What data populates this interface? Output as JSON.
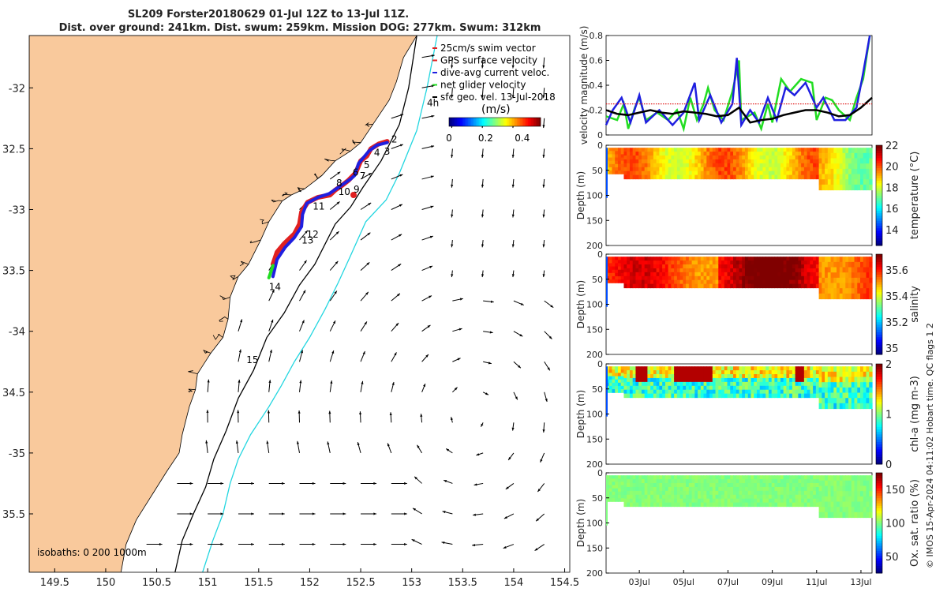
{
  "title_line1": "SL209 Forster20180629 01-Jul 12Z to 13-Jul 11Z.",
  "title_line2": "Dist. over ground: 241km. Dist. swum: 259km. Mission DOG: 277km. Swum: 312km",
  "credit": "© IMOS 15-Apr-2024 04:11:02 Hobart time. QC flags 1  2",
  "colors": {
    "land": "#f9c99c",
    "gps": "#e02020",
    "dive_avg": "#1f1fe0",
    "net": "#22dd22",
    "isobath_200": "#000000",
    "isobath_1000": "#22d6e0",
    "speed_black": "#000000"
  },
  "chart_data": [
    {
      "type": "map",
      "legend": {
        "entries": [
          "25cm/s swim vector",
          "GPS surface velocity",
          "dive-avg current veloc.",
          "net glider velocity",
          "sfc geo. vel. 13-Jul-2018"
        ],
        "placement": "top-right"
      },
      "colorbar": {
        "label": "(m/s)",
        "ticks": [
          0,
          0.2,
          0.4
        ],
        "range": [
          0,
          0.5
        ]
      },
      "xticks": [
        149.5,
        150,
        150.5,
        151,
        151.5,
        152,
        152.5,
        153,
        153.5,
        154,
        154.5
      ],
      "xtick_labels": [
        "149.5",
        "150",
        "150.5",
        "151",
        "151.5",
        "152",
        "152.5",
        "153",
        "153.5",
        "154",
        "154.5"
      ],
      "xlim": [
        149.25,
        154.55
      ],
      "yticks": [
        -32,
        -32.5,
        -33,
        -33.5,
        -34,
        -34.5,
        -35,
        -35.5
      ],
      "ytick_labels": [
        "-32",
        "32.5",
        "-33",
        "33.5",
        "-34",
        "34.5",
        "-35",
        "35.5"
      ],
      "ylim": [
        -35.98,
        -31.57
      ],
      "isobaths_label": "isobaths: 0   200  1000m",
      "coast": [
        [
          153.05,
          -31.57
        ],
        [
          152.92,
          -31.75
        ],
        [
          152.85,
          -31.95
        ],
        [
          152.78,
          -32.1
        ],
        [
          152.62,
          -32.3
        ],
        [
          152.5,
          -32.45
        ],
        [
          152.4,
          -32.52
        ],
        [
          152.25,
          -32.6
        ],
        [
          152.12,
          -32.72
        ],
        [
          151.95,
          -32.83
        ],
        [
          151.82,
          -32.88
        ],
        [
          151.73,
          -32.93
        ],
        [
          151.6,
          -33.1
        ],
        [
          151.52,
          -33.25
        ],
        [
          151.4,
          -33.45
        ],
        [
          151.3,
          -33.55
        ],
        [
          151.22,
          -33.72
        ],
        [
          151.2,
          -33.9
        ],
        [
          151.15,
          -34.05
        ],
        [
          151.03,
          -34.18
        ],
        [
          150.9,
          -34.35
        ],
        [
          150.88,
          -34.48
        ],
        [
          150.82,
          -34.62
        ],
        [
          150.75,
          -34.85
        ],
        [
          150.72,
          -35.0
        ],
        [
          150.6,
          -35.15
        ],
        [
          150.45,
          -35.35
        ],
        [
          150.3,
          -35.55
        ],
        [
          150.2,
          -35.75
        ],
        [
          150.15,
          -35.98
        ]
      ],
      "isobath_200": [
        [
          153.05,
          -31.57
        ],
        [
          152.97,
          -32.0
        ],
        [
          152.88,
          -32.3
        ],
        [
          152.7,
          -32.6
        ],
        [
          152.52,
          -32.82
        ],
        [
          152.4,
          -32.98
        ],
        [
          152.25,
          -33.12
        ],
        [
          152.05,
          -33.45
        ],
        [
          151.9,
          -33.62
        ],
        [
          151.75,
          -33.85
        ],
        [
          151.58,
          -34.05
        ],
        [
          151.45,
          -34.32
        ],
        [
          151.3,
          -34.55
        ],
        [
          151.18,
          -34.82
        ],
        [
          151.06,
          -35.05
        ],
        [
          150.98,
          -35.28
        ],
        [
          150.86,
          -35.5
        ],
        [
          150.75,
          -35.72
        ],
        [
          150.68,
          -35.98
        ]
      ],
      "isobath_1000": [
        [
          153.25,
          -31.57
        ],
        [
          153.15,
          -32.0
        ],
        [
          153.05,
          -32.35
        ],
        [
          152.88,
          -32.7
        ],
        [
          152.75,
          -32.92
        ],
        [
          152.55,
          -33.1
        ],
        [
          152.4,
          -33.38
        ],
        [
          152.28,
          -33.6
        ],
        [
          152.15,
          -33.82
        ],
        [
          152.0,
          -34.05
        ],
        [
          151.85,
          -34.25
        ],
        [
          151.72,
          -34.45
        ],
        [
          151.6,
          -34.62
        ],
        [
          151.42,
          -34.85
        ],
        [
          151.3,
          -35.05
        ],
        [
          151.22,
          -35.25
        ],
        [
          151.15,
          -35.5
        ],
        [
          151.05,
          -35.72
        ],
        [
          150.95,
          -35.98
        ]
      ],
      "track_gps": [
        [
          152.76,
          -32.44
        ],
        [
          152.68,
          -32.46
        ],
        [
          152.6,
          -32.5
        ],
        [
          152.56,
          -32.56
        ],
        [
          152.5,
          -32.6
        ],
        [
          152.45,
          -32.7
        ],
        [
          152.38,
          -32.76
        ],
        [
          152.32,
          -32.8
        ],
        [
          152.25,
          -32.84
        ],
        [
          152.2,
          -32.88
        ],
        [
          152.08,
          -32.9
        ],
        [
          151.98,
          -32.94
        ],
        [
          151.92,
          -33.02
        ],
        [
          151.9,
          -33.12
        ],
        [
          151.85,
          -33.2
        ],
        [
          151.75,
          -33.28
        ],
        [
          151.68,
          -33.35
        ],
        [
          151.64,
          -33.45
        ]
      ],
      "track_dive": [
        [
          152.76,
          -32.45
        ],
        [
          152.66,
          -32.47
        ],
        [
          152.58,
          -32.52
        ],
        [
          152.52,
          -32.58
        ],
        [
          152.48,
          -32.62
        ],
        [
          152.44,
          -32.72
        ],
        [
          152.4,
          -32.75
        ],
        [
          152.33,
          -32.79
        ],
        [
          152.26,
          -32.83
        ],
        [
          152.19,
          -32.87
        ],
        [
          152.08,
          -32.9
        ],
        [
          151.97,
          -32.95
        ],
        [
          151.93,
          -33.04
        ],
        [
          151.92,
          -33.14
        ],
        [
          151.85,
          -33.23
        ],
        [
          151.76,
          -33.31
        ],
        [
          151.68,
          -33.41
        ],
        [
          151.64,
          -33.55
        ]
      ],
      "track_net": [
        [
          151.64,
          -33.46
        ],
        [
          151.6,
          -33.56
        ]
      ],
      "waypoint_labels": [
        {
          "text": "2",
          "lon": 152.8,
          "lat": -32.45
        },
        {
          "text": "3",
          "lon": 152.73,
          "lat": -32.55
        },
        {
          "text": "4",
          "lon": 152.63,
          "lat": -32.56
        },
        {
          "text": "5",
          "lon": 152.53,
          "lat": -32.66
        },
        {
          "text": "7",
          "lon": 152.49,
          "lat": -32.75
        },
        {
          "text": "6",
          "lon": 152.42,
          "lat": -32.72
        },
        {
          "text": "8",
          "lon": 152.26,
          "lat": -32.81
        },
        {
          "text": "9",
          "lon": 152.43,
          "lat": -32.86
        },
        {
          "text": "10",
          "lon": 152.28,
          "lat": -32.88
        },
        {
          "text": "11",
          "lon": 152.03,
          "lat": -33.0
        },
        {
          "text": "12",
          "lon": 151.97,
          "lat": -33.23
        },
        {
          "text": "13",
          "lon": 151.92,
          "lat": -33.28
        },
        {
          "text": "14",
          "lon": 151.6,
          "lat": -33.66
        },
        {
          "text": "15",
          "lon": 151.38,
          "lat": -34.26
        },
        {
          "text": "4h",
          "lon": 153.15,
          "lat": -32.15
        }
      ]
    },
    {
      "type": "line",
      "ylabel": "velocity magnitude (m/s)",
      "yticks": [
        0,
        0.2,
        0.4,
        0.6,
        0.8
      ],
      "ylim": [
        0,
        0.8
      ],
      "xlim": [
        1.5,
        13.5
      ],
      "series": [
        {
          "color": "green",
          "values": [
            [
              1.5,
              0.15
            ],
            [
              2.0,
              0.12
            ],
            [
              2.3,
              0.25
            ],
            [
              2.5,
              0.05
            ],
            [
              2.8,
              0.22
            ],
            [
              3.0,
              0.3
            ],
            [
              3.3,
              0.12
            ],
            [
              3.8,
              0.18
            ],
            [
              4.3,
              0.12
            ],
            [
              4.7,
              0.2
            ],
            [
              5.0,
              0.05
            ],
            [
              5.3,
              0.3
            ],
            [
              5.6,
              0.12
            ],
            [
              5.9,
              0.25
            ],
            [
              6.1,
              0.38
            ],
            [
              6.4,
              0.2
            ],
            [
              6.8,
              0.12
            ],
            [
              7.2,
              0.35
            ],
            [
              7.5,
              0.6
            ],
            [
              7.6,
              0.12
            ],
            [
              8.2,
              0.18
            ],
            [
              8.5,
              0.05
            ],
            [
              8.8,
              0.25
            ],
            [
              9.0,
              0.1
            ],
            [
              9.4,
              0.45
            ],
            [
              9.8,
              0.35
            ],
            [
              10.3,
              0.45
            ],
            [
              10.8,
              0.42
            ],
            [
              11.0,
              0.12
            ],
            [
              11.4,
              0.3
            ],
            [
              11.7,
              0.28
            ],
            [
              12.0,
              0.2
            ],
            [
              12.5,
              0.12
            ],
            [
              12.8,
              0.3
            ],
            [
              13.1,
              0.45
            ],
            [
              13.4,
              0.8
            ]
          ]
        },
        {
          "color": "blue",
          "values": [
            [
              1.5,
              0.08
            ],
            [
              1.8,
              0.2
            ],
            [
              2.2,
              0.3
            ],
            [
              2.6,
              0.1
            ],
            [
              3.0,
              0.32
            ],
            [
              3.3,
              0.1
            ],
            [
              3.9,
              0.2
            ],
            [
              4.5,
              0.08
            ],
            [
              5.0,
              0.18
            ],
            [
              5.5,
              0.42
            ],
            [
              5.7,
              0.12
            ],
            [
              6.2,
              0.32
            ],
            [
              6.7,
              0.1
            ],
            [
              7.2,
              0.25
            ],
            [
              7.4,
              0.62
            ],
            [
              7.6,
              0.08
            ],
            [
              8.0,
              0.2
            ],
            [
              8.4,
              0.1
            ],
            [
              8.8,
              0.3
            ],
            [
              9.2,
              0.12
            ],
            [
              9.6,
              0.38
            ],
            [
              10.0,
              0.32
            ],
            [
              10.5,
              0.42
            ],
            [
              11.0,
              0.22
            ],
            [
              11.3,
              0.3
            ],
            [
              11.8,
              0.12
            ],
            [
              12.3,
              0.12
            ],
            [
              12.8,
              0.22
            ],
            [
              13.1,
              0.5
            ],
            [
              13.4,
              0.8
            ]
          ]
        },
        {
          "color": "black",
          "values": [
            [
              1.5,
              0.2
            ],
            [
              2.0,
              0.17
            ],
            [
              2.5,
              0.16
            ],
            [
              3.0,
              0.18
            ],
            [
              3.5,
              0.2
            ],
            [
              4.0,
              0.18
            ],
            [
              4.5,
              0.17
            ],
            [
              5.0,
              0.19
            ],
            [
              5.5,
              0.18
            ],
            [
              6.0,
              0.17
            ],
            [
              6.5,
              0.15
            ],
            [
              7.0,
              0.16
            ],
            [
              7.5,
              0.22
            ],
            [
              8.0,
              0.1
            ],
            [
              8.5,
              0.12
            ],
            [
              9.0,
              0.13
            ],
            [
              9.5,
              0.16
            ],
            [
              10.0,
              0.18
            ],
            [
              10.5,
              0.2
            ],
            [
              11.0,
              0.2
            ],
            [
              11.5,
              0.18
            ],
            [
              12.0,
              0.15
            ],
            [
              12.5,
              0.16
            ],
            [
              13.0,
              0.22
            ],
            [
              13.5,
              0.3
            ]
          ]
        },
        {
          "color": "red",
          "style": "dotted",
          "values": [
            [
              1.5,
              0.25
            ],
            [
              13.5,
              0.25
            ]
          ]
        }
      ]
    },
    {
      "type": "heatmap",
      "ylabel": "Depth (m)",
      "clabel": "temperature (°C)",
      "yticks": [
        0,
        50,
        100,
        150,
        200
      ],
      "ylim": [
        0,
        200
      ],
      "cticks": [
        14,
        16,
        18,
        20,
        22
      ],
      "clim": [
        12.5,
        22
      ]
    },
    {
      "type": "heatmap",
      "ylabel": "Depth (m)",
      "clabel": "salinity",
      "yticks": [
        0,
        50,
        100,
        150,
        200
      ],
      "ylim": [
        0,
        200
      ],
      "cticks": [
        35,
        35.2,
        35.4,
        35.6
      ],
      "clim": [
        34.95,
        35.72
      ]
    },
    {
      "type": "heatmap",
      "ylabel": "Depth (m)",
      "clabel": "chl-a (mg m-3)",
      "yticks": [
        0,
        50,
        100,
        150,
        200
      ],
      "ylim": [
        0,
        200
      ],
      "cticks": [
        0,
        1,
        2
      ],
      "clim": [
        0,
        2
      ]
    },
    {
      "type": "heatmap",
      "ylabel": "Depth (m)",
      "clabel": "Ox. sat. ratio (%)",
      "yticks": [
        0,
        50,
        100,
        150,
        200
      ],
      "ylim": [
        0,
        200
      ],
      "cticks": [
        50,
        100,
        150
      ],
      "clim": [
        25,
        175
      ],
      "xticks": [
        3,
        5,
        7,
        9,
        11,
        13
      ],
      "xtick_labels": [
        "03Jul",
        "05Jul",
        "07Jul",
        "09Jul",
        "11Jul",
        "13Jul"
      ]
    }
  ]
}
